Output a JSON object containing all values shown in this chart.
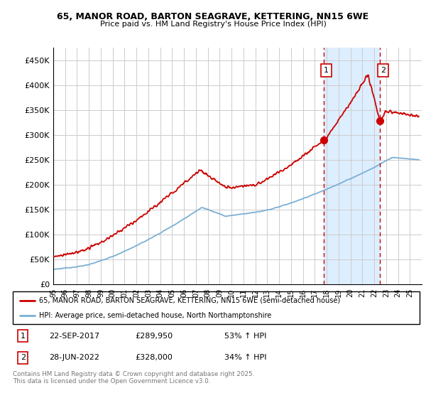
{
  "title_line1": "65, MANOR ROAD, BARTON SEAGRAVE, KETTERING, NN15 6WE",
  "title_line2": "Price paid vs. HM Land Registry's House Price Index (HPI)",
  "ylim": [
    0,
    475000
  ],
  "yticks": [
    0,
    50000,
    100000,
    150000,
    200000,
    250000,
    300000,
    350000,
    400000,
    450000
  ],
  "ytick_labels": [
    "£0",
    "£50K",
    "£100K",
    "£150K",
    "£200K",
    "£250K",
    "£300K",
    "£350K",
    "£400K",
    "£450K"
  ],
  "background_color": "#ffffff",
  "plot_bg_color": "#ffffff",
  "grid_color": "#cccccc",
  "red_line_color": "#cc0000",
  "blue_line_color": "#7bafd4",
  "highlight_bg_color": "#ddeeff",
  "event1_x": 2017.73,
  "event1_y": 289950,
  "event1_label": "1",
  "event2_x": 2022.49,
  "event2_y": 328000,
  "event2_label": "2",
  "legend_red_label": "65, MANOR ROAD, BARTON SEAGRAVE, KETTERING, NN15 6WE (semi-detached house)",
  "legend_blue_label": "HPI: Average price, semi-detached house, North Northamptonshire",
  "table_row1": [
    "1",
    "22-SEP-2017",
    "£289,950",
    "53% ↑ HPI"
  ],
  "table_row2": [
    "2",
    "28-JUN-2022",
    "£328,000",
    "34% ↑ HPI"
  ],
  "footer_text": "Contains HM Land Registry data © Crown copyright and database right 2025.\nThis data is licensed under the Open Government Licence v3.0.",
  "xmin": 1995,
  "xmax": 2026
}
